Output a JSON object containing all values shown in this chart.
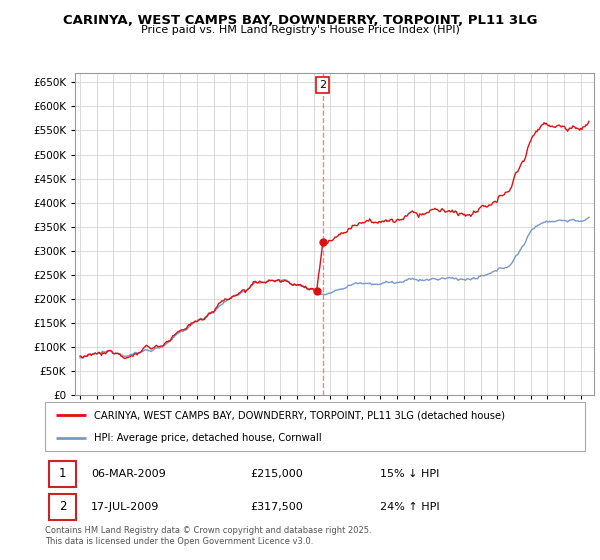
{
  "title": "CARINYA, WEST CAMPS BAY, DOWNDERRY, TORPOINT, PL11 3LG",
  "subtitle": "Price paid vs. HM Land Registry's House Price Index (HPI)",
  "ylim": [
    0,
    670000
  ],
  "yticks": [
    0,
    50000,
    100000,
    150000,
    200000,
    250000,
    300000,
    350000,
    400000,
    450000,
    500000,
    550000,
    600000,
    650000
  ],
  "hpi_color": "#7799cc",
  "price_color": "#dd1111",
  "dashed_line_color": "#ee8888",
  "t1_year": 2009.18,
  "t2_year": 2009.54,
  "t1_price": 215000,
  "t2_price": 317500,
  "transaction1": {
    "date": "06-MAR-2009",
    "price": 215000,
    "hpi_diff": "15% ↓ HPI"
  },
  "transaction2": {
    "date": "17-JUL-2009",
    "price": 317500,
    "hpi_diff": "24% ↑ HPI"
  },
  "legend_label1": "CARINYA, WEST CAMPS BAY, DOWNDERRY, TORPOINT, PL11 3LG (detached house)",
  "legend_label2": "HPI: Average price, detached house, Cornwall",
  "footnote": "Contains HM Land Registry data © Crown copyright and database right 2025.\nThis data is licensed under the Open Government Licence v3.0.",
  "xlim_start": 1994.7,
  "xlim_end": 2025.8,
  "xtick_start": 1995,
  "xtick_end": 2025
}
